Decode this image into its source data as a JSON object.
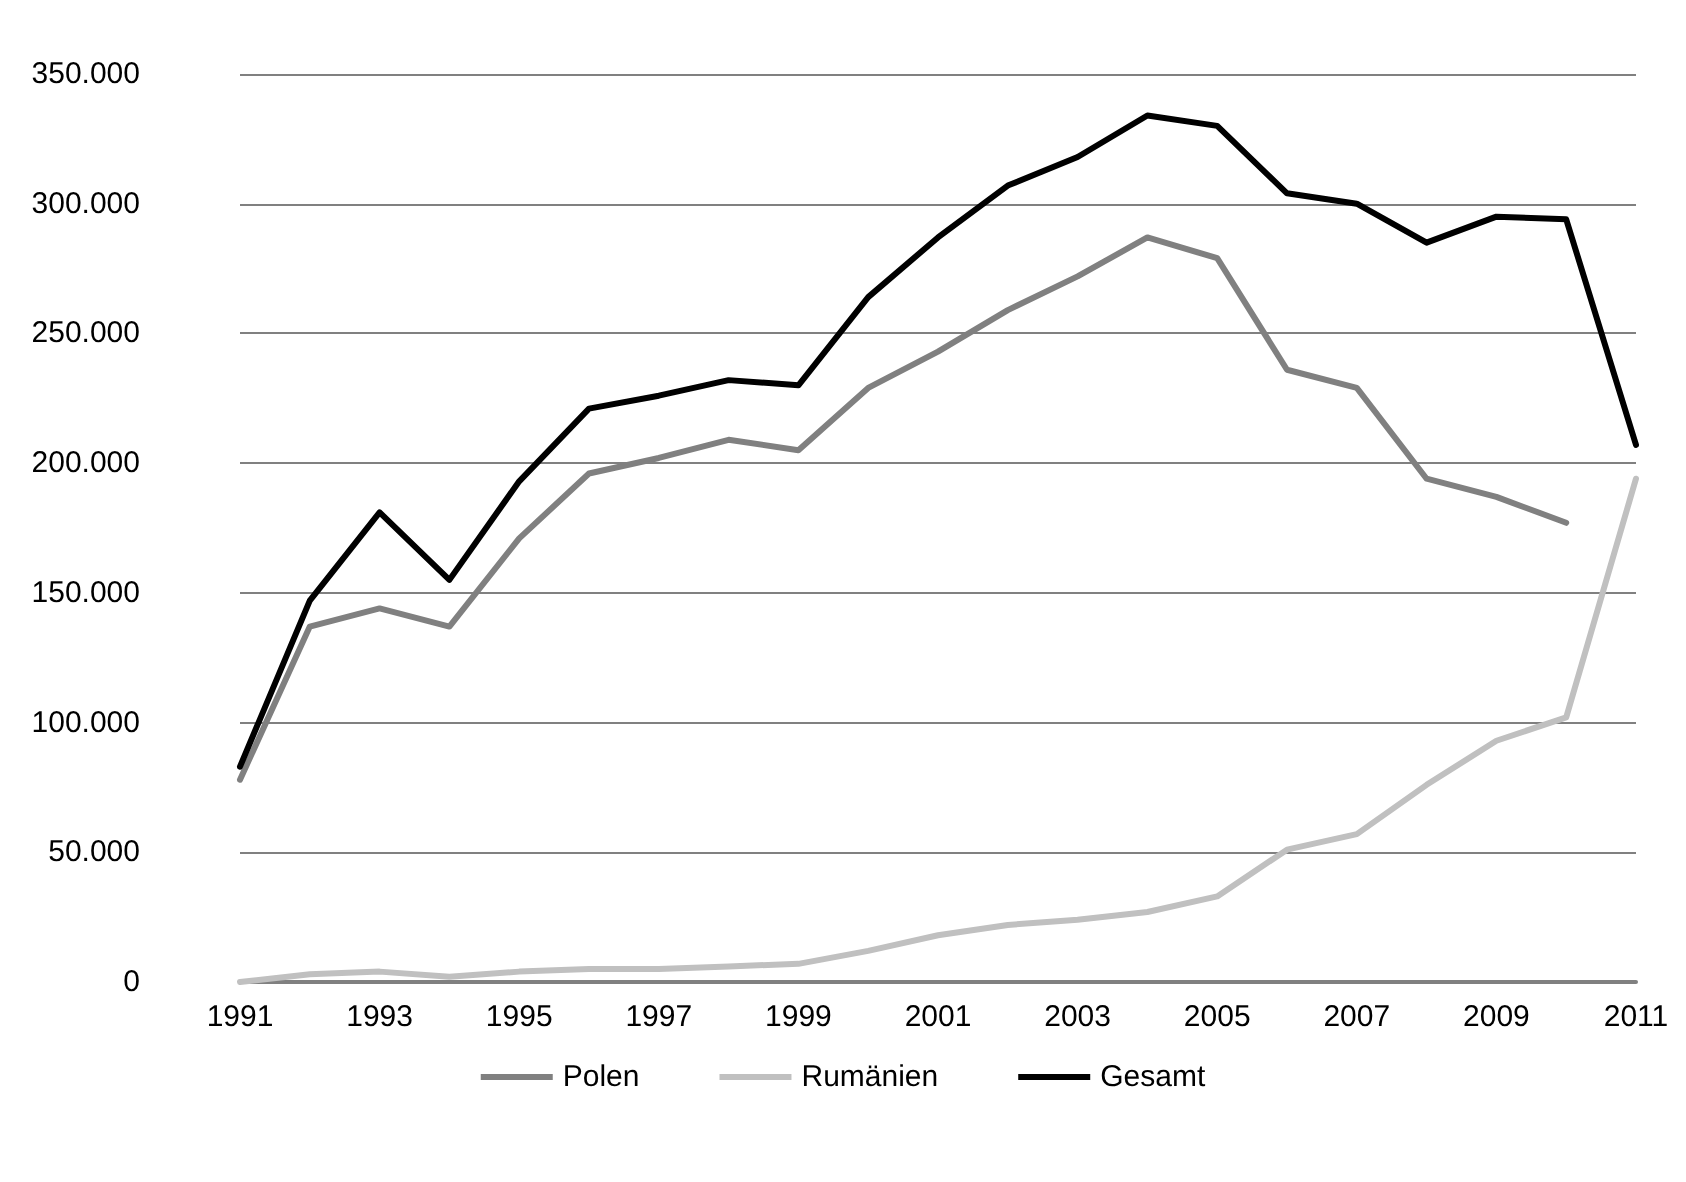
{
  "chart_data": {
    "type": "line",
    "categories": [
      "1991",
      null,
      "1993",
      null,
      "1995",
      null,
      "1997",
      null,
      "1999",
      null,
      "2001",
      null,
      "2003",
      null,
      "2005",
      null,
      "2007",
      null,
      "2009",
      null,
      "2011"
    ],
    "series": [
      {
        "name": "Polen",
        "color": "#808080",
        "values": [
          78000,
          137000,
          144000,
          137000,
          171000,
          196000,
          202000,
          209000,
          205000,
          229000,
          243000,
          259000,
          272000,
          287000,
          279000,
          236000,
          229000,
          194000,
          187000,
          177000,
          null
        ]
      },
      {
        "name": "Rumänien",
        "color": "#c0c0c0",
        "values": [
          0,
          3000,
          4000,
          2000,
          4000,
          5000,
          5000,
          6000,
          7000,
          12000,
          18000,
          22000,
          24000,
          27000,
          33000,
          51000,
          57000,
          76000,
          93000,
          102000,
          194000
        ]
      },
      {
        "name": "Gesamt",
        "color": "#000000",
        "values": [
          83000,
          147000,
          181000,
          155000,
          193000,
          221000,
          226000,
          232000,
          230000,
          264000,
          287000,
          307000,
          318000,
          334000,
          330000,
          304000,
          300000,
          285000,
          295000,
          294000,
          207000
        ]
      }
    ],
    "ylim": [
      0,
      350000
    ],
    "yticks": [
      0,
      {
        "value": 50000,
        "label": "50.000"
      },
      {
        "value": 100000,
        "label": "100.000"
      },
      {
        "value": 150000,
        "label": "150.000"
      },
      {
        "value": 200000,
        "label": "200.000"
      },
      {
        "value": 250000,
        "label": "250.000"
      },
      {
        "value": 300000,
        "label": "300.000"
      },
      {
        "value": 350000,
        "label": "350.000"
      }
    ],
    "grid": "y",
    "legend": "bottom",
    "marker": "none",
    "line_style": "solid"
  }
}
